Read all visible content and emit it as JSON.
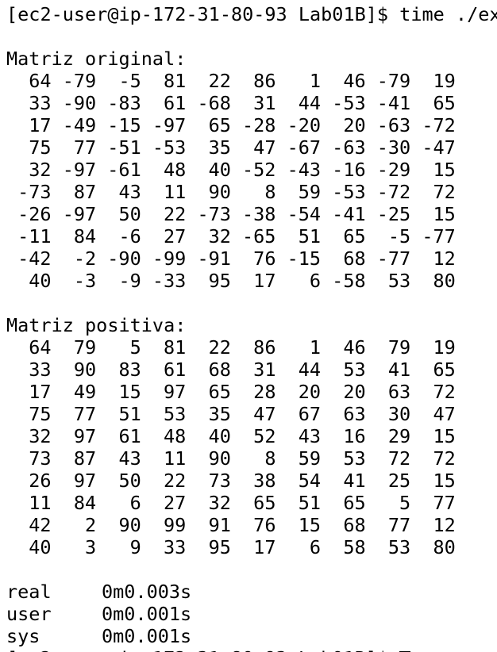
{
  "prompt": "[ec2-user@ip-172-31-80-93 Lab01B]$ time ./ex",
  "matrices": [
    {
      "title": "Matriz original:",
      "rows": [
        [
          64,
          -79,
          -5,
          81,
          22,
          86,
          1,
          46,
          -79,
          19
        ],
        [
          33,
          -90,
          -83,
          61,
          -68,
          31,
          44,
          -53,
          -41,
          65
        ],
        [
          17,
          -49,
          -15,
          -97,
          65,
          -28,
          -20,
          20,
          -63,
          -72
        ],
        [
          75,
          77,
          -51,
          -53,
          35,
          47,
          -67,
          -63,
          -30,
          -47
        ],
        [
          32,
          -97,
          -61,
          48,
          40,
          -52,
          -43,
          -16,
          -29,
          15
        ],
        [
          -73,
          87,
          43,
          11,
          90,
          8,
          59,
          -53,
          -72,
          72
        ],
        [
          -26,
          -97,
          50,
          22,
          -73,
          -38,
          -54,
          -41,
          -25,
          15
        ],
        [
          -11,
          84,
          -6,
          27,
          32,
          -65,
          51,
          65,
          -5,
          -77
        ],
        [
          -42,
          -2,
          -90,
          -99,
          -91,
          76,
          -15,
          68,
          -77,
          12
        ],
        [
          40,
          -3,
          -9,
          -33,
          95,
          17,
          6,
          -58,
          53,
          80
        ]
      ]
    },
    {
      "title": "Matriz positiva:",
      "rows": [
        [
          64,
          79,
          5,
          81,
          22,
          86,
          1,
          46,
          79,
          19
        ],
        [
          33,
          90,
          83,
          61,
          68,
          31,
          44,
          53,
          41,
          65
        ],
        [
          17,
          49,
          15,
          97,
          65,
          28,
          20,
          20,
          63,
          72
        ],
        [
          75,
          77,
          51,
          53,
          35,
          47,
          67,
          63,
          30,
          47
        ],
        [
          32,
          97,
          61,
          48,
          40,
          52,
          43,
          16,
          29,
          15
        ],
        [
          73,
          87,
          43,
          11,
          90,
          8,
          59,
          53,
          72,
          72
        ],
        [
          26,
          97,
          50,
          22,
          73,
          38,
          54,
          41,
          25,
          15
        ],
        [
          11,
          84,
          6,
          27,
          32,
          65,
          51,
          65,
          5,
          77
        ],
        [
          42,
          2,
          90,
          99,
          91,
          76,
          15,
          68,
          77,
          12
        ],
        [
          40,
          3,
          9,
          33,
          95,
          17,
          6,
          58,
          53,
          80
        ]
      ]
    }
  ],
  "timing": [
    [
      "real",
      "0m0.003s"
    ],
    [
      "user",
      "0m0.001s"
    ],
    [
      "sys",
      "0m0.001s"
    ]
  ],
  "final_prompt": "[ec2-user@ip-172-31-80-93 Lab01B]$"
}
